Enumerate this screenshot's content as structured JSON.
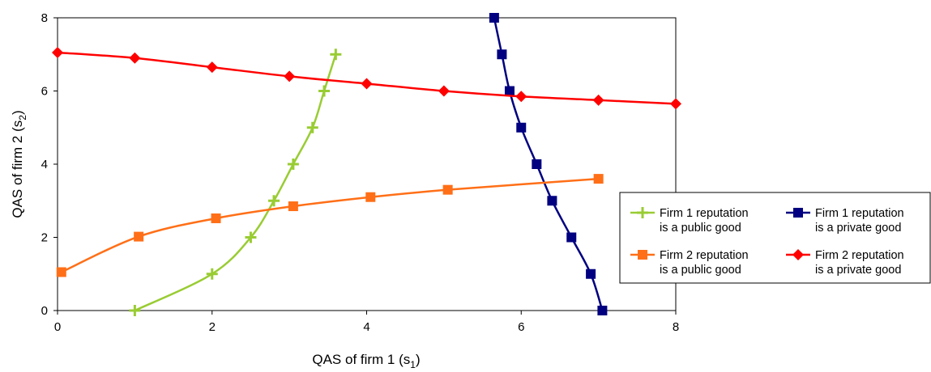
{
  "chart_data": {
    "type": "line",
    "xlabel": {
      "main": "QAS of firm 1 (s",
      "sub": "1",
      "tail": ")"
    },
    "ylabel": {
      "main": "QAS of firm 2 (s",
      "sub": "2",
      "tail": ")"
    },
    "xlim": [
      0,
      8
    ],
    "ylim": [
      0,
      8
    ],
    "xticks": [
      0,
      2,
      4,
      6,
      8
    ],
    "yticks": [
      0,
      2,
      4,
      6,
      8
    ],
    "grid": false,
    "legend_position": "right",
    "series": [
      {
        "name_lines": [
          "Firm 1 reputation",
          "is a public good"
        ],
        "color": "#99cc33",
        "marker": "plus",
        "points": [
          [
            1.0,
            0
          ],
          [
            2.0,
            1
          ],
          [
            2.5,
            2
          ],
          [
            2.8,
            3
          ],
          [
            3.05,
            4
          ],
          [
            3.3,
            5
          ],
          [
            3.45,
            6
          ],
          [
            3.6,
            7
          ]
        ]
      },
      {
        "name_lines": [
          "Firm 1 reputation",
          "is a private good"
        ],
        "color": "#000080",
        "marker": "square",
        "points": [
          [
            5.65,
            8
          ],
          [
            5.75,
            7
          ],
          [
            5.85,
            6
          ],
          [
            6.0,
            5
          ],
          [
            6.2,
            4
          ],
          [
            6.4,
            3
          ],
          [
            6.65,
            2
          ],
          [
            6.9,
            1
          ],
          [
            7.05,
            0
          ]
        ]
      },
      {
        "name_lines": [
          "Firm 2 reputation",
          "is a public good"
        ],
        "color": "#ff6f17",
        "marker": "square",
        "points": [
          [
            0.05,
            1.05
          ],
          [
            1.05,
            2.02
          ],
          [
            2.05,
            2.52
          ],
          [
            3.05,
            2.85
          ],
          [
            4.05,
            3.1
          ],
          [
            5.05,
            3.3
          ],
          [
            7.0,
            3.6
          ]
        ]
      },
      {
        "name_lines": [
          "Firm 2 reputation",
          "is a private good"
        ],
        "color": "#ff0000",
        "marker": "diamond",
        "points": [
          [
            0,
            7.05
          ],
          [
            1,
            6.9
          ],
          [
            2,
            6.65
          ],
          [
            3,
            6.4
          ],
          [
            4,
            6.2
          ],
          [
            5,
            6.0
          ],
          [
            6,
            5.85
          ],
          [
            7,
            5.75
          ],
          [
            8,
            5.65
          ]
        ]
      }
    ]
  }
}
